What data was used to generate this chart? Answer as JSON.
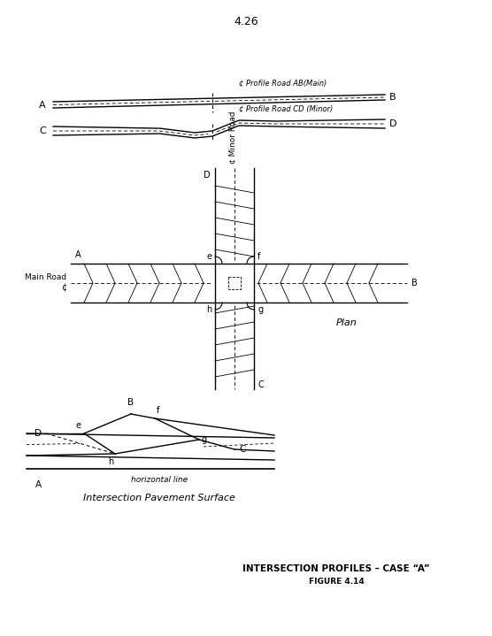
{
  "page_number": "4.26",
  "title_main": "INTERSECTION PROFILES – CASE “A”",
  "title_sub": "FIGURE 4.14",
  "bg_color": "#ffffff",
  "text_color": "#000000"
}
